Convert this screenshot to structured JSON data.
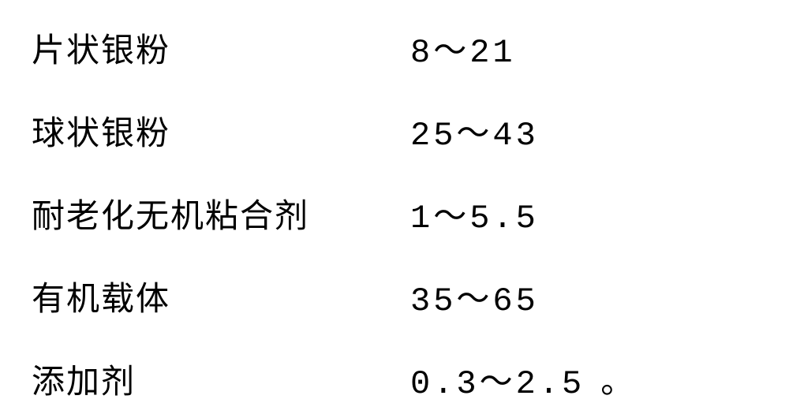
{
  "composition_table": {
    "type": "table",
    "background_color": "#ffffff",
    "text_color": "#000000",
    "font_family": "SimSun",
    "label_fontsize": 42,
    "value_fontsize": 42,
    "label_column_width": 480,
    "row_gap": 44,
    "rows": [
      {
        "label": "片状银粉",
        "value": "8～21"
      },
      {
        "label": "球状银粉",
        "value": "25～43"
      },
      {
        "label": "耐老化无机粘合剂",
        "value": "1～5.5"
      },
      {
        "label": "有机载体",
        "value": "35～65"
      },
      {
        "label": "添加剂",
        "value": "0.3～2.5"
      }
    ],
    "trailing_period": "。"
  }
}
